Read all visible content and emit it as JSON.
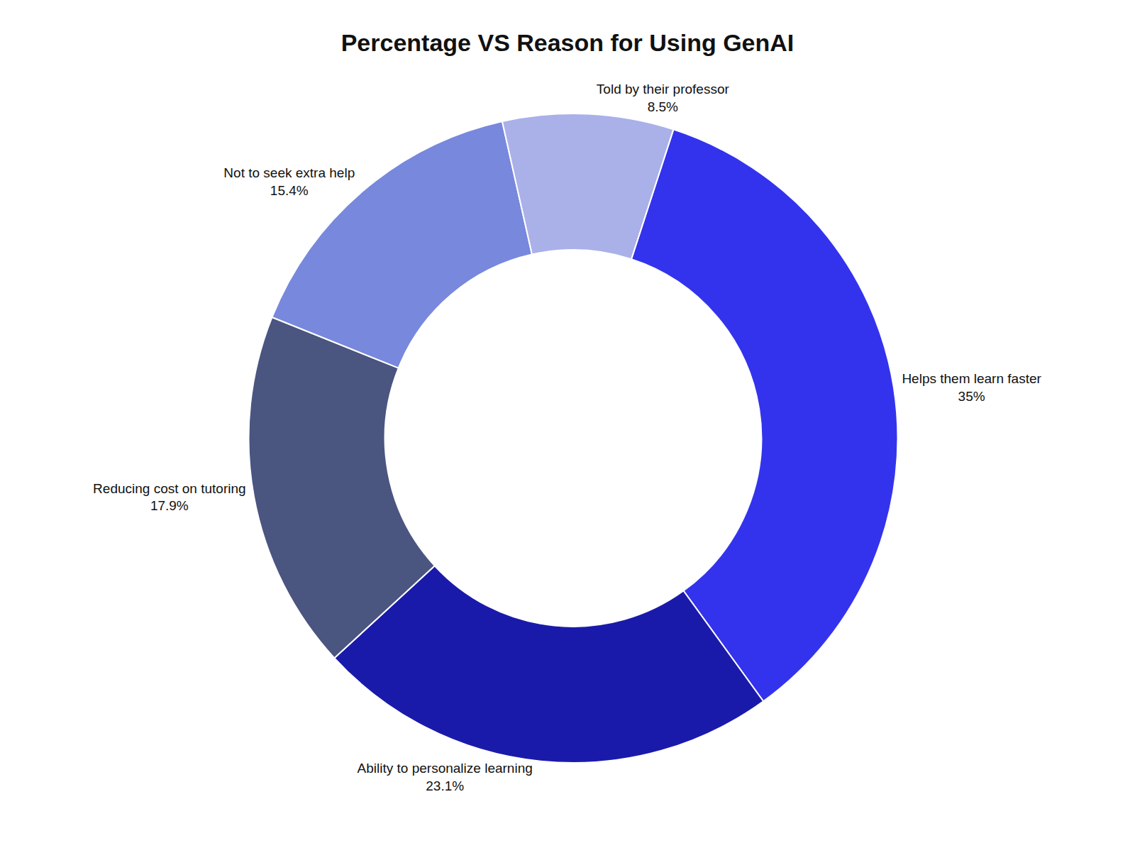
{
  "chart_data": {
    "type": "donut",
    "title": "Percentage VS Reason for Using GenAI",
    "categories": [
      "Helps them learn faster",
      "Ability to personalize learning",
      "Reducing cost on tutoring",
      "Not to seek extra help",
      "Told by their professor"
    ],
    "values": [
      35.0,
      23.1,
      17.9,
      15.4,
      8.5
    ],
    "value_labels": [
      "35%",
      "23.1%",
      "17.9%",
      "15.4%",
      "8.5%"
    ],
    "colors": [
      "#3333ee",
      "#1a1aaa",
      "#4a5580",
      "#7788dd",
      "#aab0e8"
    ],
    "data_labels": true
  }
}
